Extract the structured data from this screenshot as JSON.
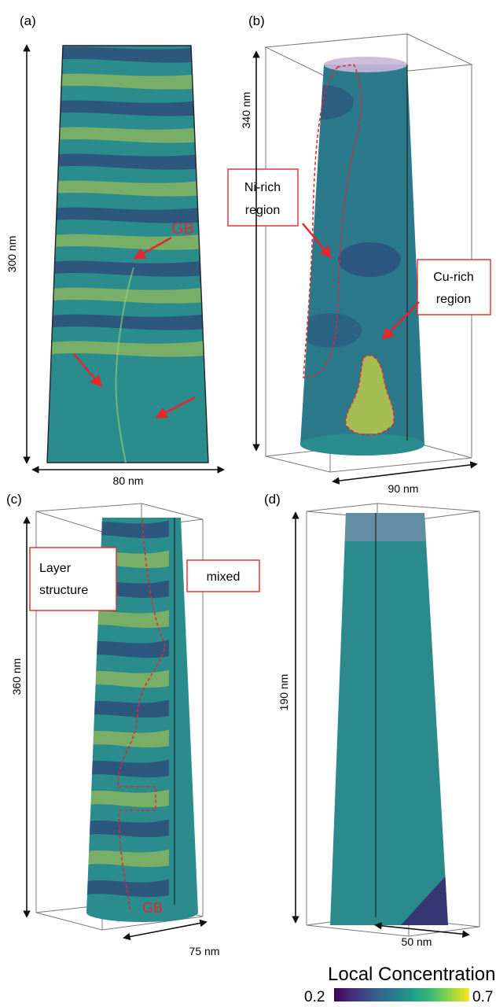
{
  "figure": {
    "panels": [
      {
        "label": "(a)",
        "dims": {
          "height": "300 nm",
          "width": "80 nm"
        },
        "annotations": [
          "GB"
        ]
      },
      {
        "label": "(b)",
        "dims": {
          "height": "340 nm",
          "width": "90 nm"
        },
        "annotations": [
          "Ni-rich",
          "region",
          "Cu-rich",
          "region"
        ]
      },
      {
        "label": "(c)",
        "dims": {
          "height": "360 nm",
          "width": "75 nm"
        },
        "annotations": [
          "Layer",
          "structure",
          "mixed",
          "GB"
        ]
      },
      {
        "label": "(d)",
        "dims": {
          "height": "190 nm",
          "width": "50 nm"
        },
        "annotations": []
      }
    ],
    "colorbar": {
      "title": "Local Concentration",
      "min": "0.2",
      "max": "0.7",
      "colormap": "viridis"
    },
    "colors": {
      "annotation_red": "#e8262b",
      "box_line": "#666666",
      "dark": "#2f2c71",
      "mid": "#2a8c8c",
      "light": "#d8d83a"
    }
  }
}
